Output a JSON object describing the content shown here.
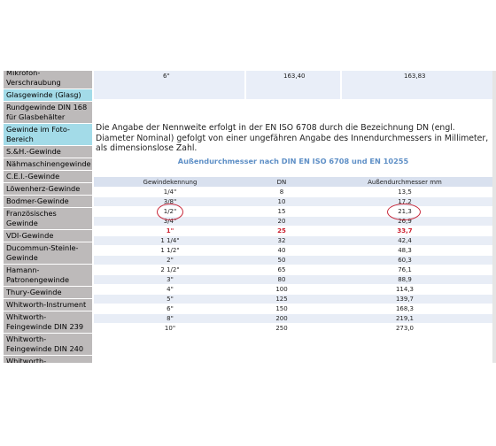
{
  "sidebar": {
    "items": [
      {
        "label": "Mikrofon-Verschraubung",
        "style": "gray"
      },
      {
        "label": "Glasgewinde (Glasg)",
        "style": "cyan"
      },
      {
        "label": "Rundgewinde DIN 168 für Glasbehälter",
        "style": "gray"
      },
      {
        "label": "Gewinde im Foto-Bereich",
        "style": "cyan"
      },
      {
        "label": "S.&H.-Gewinde",
        "style": "gray"
      },
      {
        "label": "Nähmaschinengewinde",
        "style": "gray"
      },
      {
        "label": "C.E.I.-Gewinde",
        "style": "gray"
      },
      {
        "label": "Löwenherz-Gewinde",
        "style": "gray"
      },
      {
        "label": "Bodmer-Gewinde",
        "style": "gray"
      },
      {
        "label": "Französisches Gewinde",
        "style": "gray"
      },
      {
        "label": "VDI-Gewinde",
        "style": "gray"
      },
      {
        "label": "Ducommun-Steinle-Gewinde",
        "style": "gray"
      },
      {
        "label": "Hamann-Patronengewinde",
        "style": "gray"
      },
      {
        "label": "Thury-Gewinde",
        "style": "gray"
      },
      {
        "label": "Whitworth-Instrument",
        "style": "gray"
      },
      {
        "label": "Whitworth-Feingewinde DIN 239",
        "style": "gray"
      },
      {
        "label": "Whitworth-Feingewinde DIN 240",
        "style": "gray"
      },
      {
        "label": "Whitworth-Feingewinde",
        "style": "gray"
      }
    ]
  },
  "top_row": {
    "col1": "6\"",
    "col2": "163,40",
    "col3": "163,83"
  },
  "intro_text": "Die Angabe der Nennweite erfolgt in der EN ISO 6708 durch die Bezeichnung DN (engl. Diameter Nominal) gefolgt von einer ungefähren Angabe des Innendurchmessers in Millimeter, als dimensionslose Zahl.",
  "table": {
    "title": "Außendurchmesser nach DIN EN ISO 6708 und EN 10255",
    "headers": [
      "Gewindekennung",
      "DN",
      "Außendurchmesser mm"
    ],
    "rows": [
      [
        "1/4\"",
        "8",
        "13,5"
      ],
      [
        "3/8\"",
        "10",
        "17,2"
      ],
      [
        "1/2\"",
        "15",
        "21,3"
      ],
      [
        "3/4\"",
        "20",
        "26,9"
      ],
      [
        "1\"",
        "25",
        "33,7"
      ],
      [
        "1 1/4\"",
        "32",
        "42,4"
      ],
      [
        "1 1/2\"",
        "40",
        "48,3"
      ],
      [
        "2\"",
        "50",
        "60,3"
      ],
      [
        "2 1/2\"",
        "65",
        "76,1"
      ],
      [
        "3\"",
        "80",
        "88,9"
      ],
      [
        "4\"",
        "100",
        "114,3"
      ],
      [
        "5\"",
        "125",
        "139,7"
      ],
      [
        "6\"",
        "150",
        "168,3"
      ],
      [
        "8\"",
        "200",
        "219,1"
      ],
      [
        "10\"",
        "250",
        "273,0"
      ]
    ],
    "highlight_row": 4,
    "circled_row": 2
  },
  "colors": {
    "sidebar_gray": "#bdbaba",
    "sidebar_cyan": "#a3dbe8",
    "title_blue": "#5e8fc6",
    "highlight_red": "#cc1f2f",
    "circle_red": "#c8283a"
  }
}
